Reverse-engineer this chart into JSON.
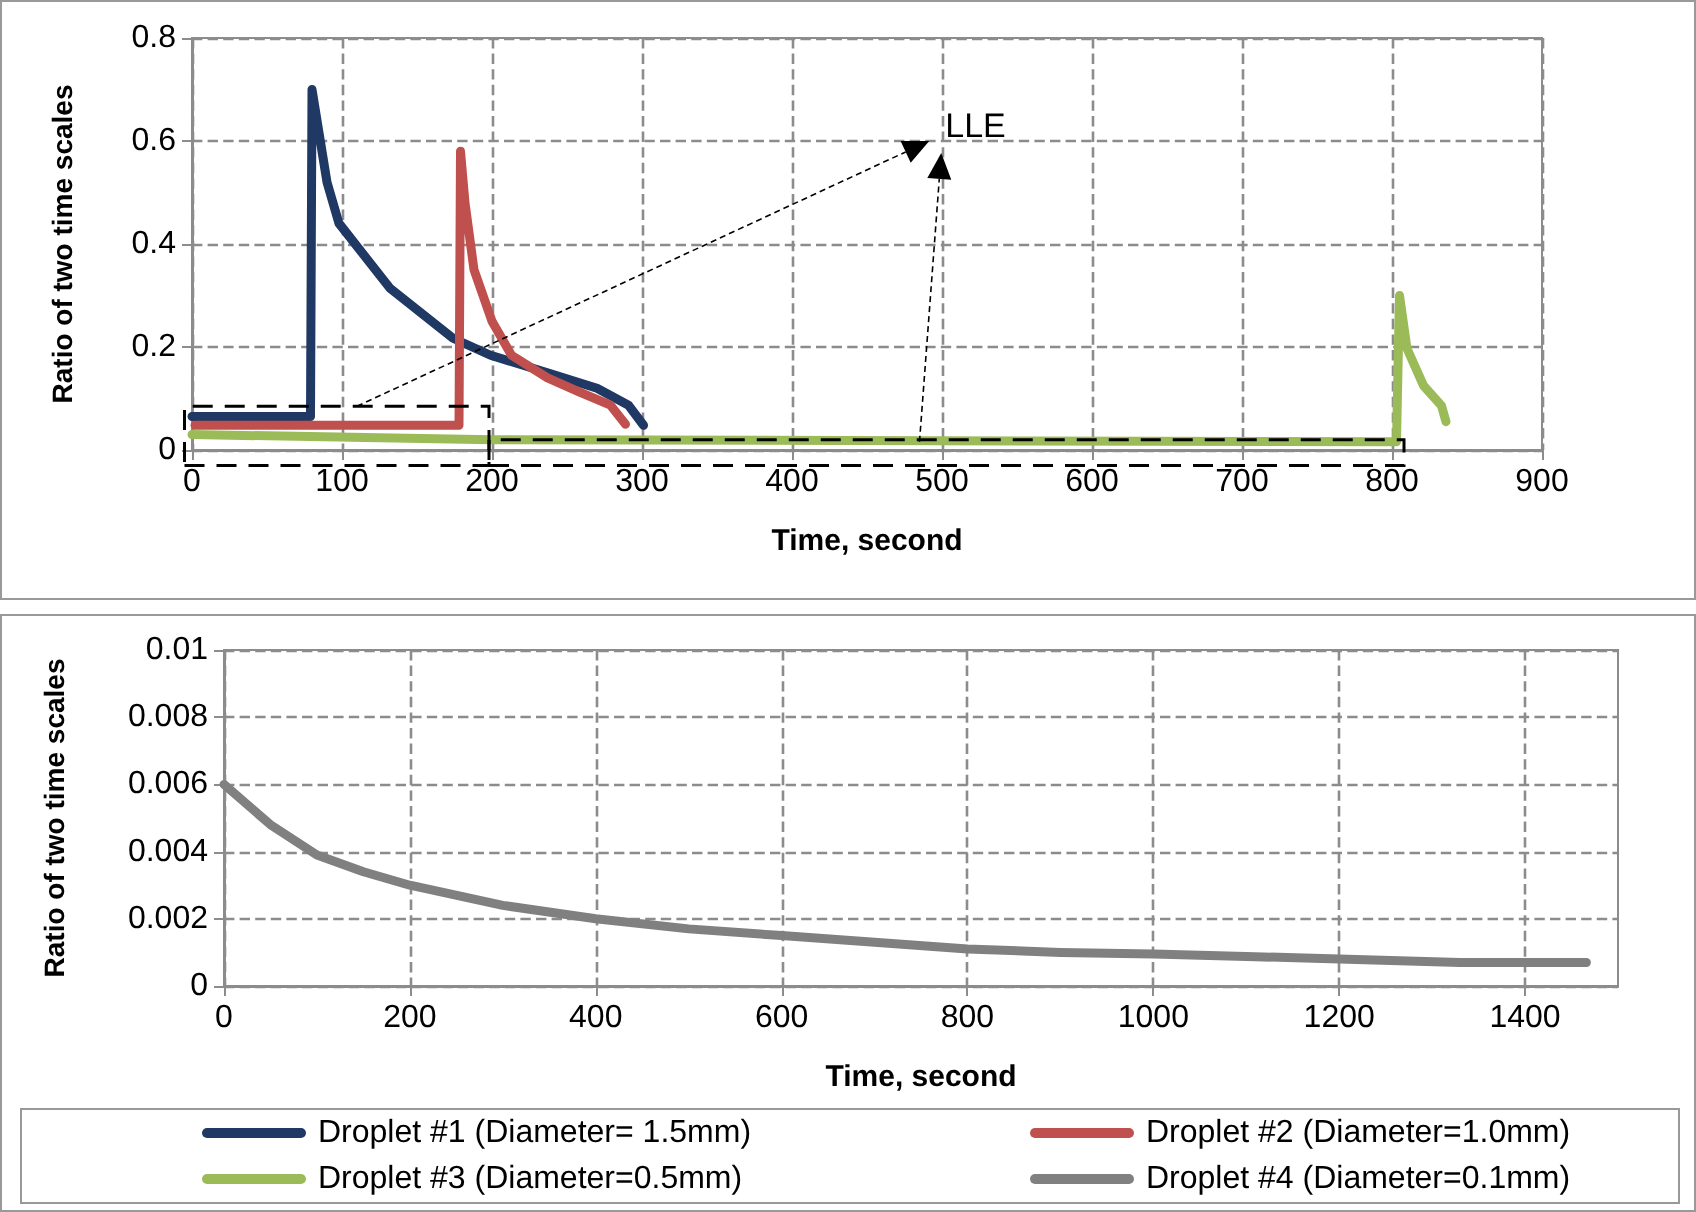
{
  "chart_data": [
    {
      "type": "line",
      "xlabel": "Time, second",
      "ylabel": "Ratio of two time scales",
      "xlim": [
        0,
        900
      ],
      "xticks": [
        0,
        100,
        200,
        300,
        400,
        500,
        600,
        700,
        800,
        900
      ],
      "ylim": [
        0,
        0.8
      ],
      "yticks": [
        0,
        0.2,
        0.4,
        0.6,
        0.8
      ],
      "grid": true,
      "legend": "bottom",
      "marker": "none",
      "annotations": [
        {
          "text": "LLE",
          "x": 485,
          "y": 0.016
        }
      ],
      "series": [
        {
          "name": "Droplet #1 (Diameter= 1.5mm)",
          "color": "#1f3864",
          "x": [
            0,
            79,
            80,
            90,
            98,
            132,
            174,
            199,
            237,
            270,
            291,
            301
          ],
          "values": [
            0.065,
            0.065,
            0.7,
            0.52,
            0.44,
            0.314,
            0.217,
            0.184,
            0.15,
            0.12,
            0.087,
            0.048
          ]
        },
        {
          "name": "Droplet #2 (Diameter=1.0mm)",
          "color": "#c0504d",
          "x": [
            2,
            178,
            179,
            182,
            188,
            200,
            213,
            237,
            258,
            279,
            289
          ],
          "values": [
            0.048,
            0.048,
            0.58,
            0.48,
            0.35,
            0.25,
            0.184,
            0.14,
            0.113,
            0.087,
            0.05
          ]
        },
        {
          "name": "Droplet #3 (Diameter=0.5mm)",
          "color": "#9bbb59",
          "x": [
            0,
            200,
            800,
            803,
            805,
            810,
            821,
            833,
            836
          ],
          "values": [
            0.03,
            0.02,
            0.016,
            0.016,
            0.3,
            0.197,
            0.125,
            0.086,
            0.055
          ]
        }
      ]
    },
    {
      "type": "line",
      "xlabel": "Time, second",
      "ylabel": "Ratio of two time scales",
      "xlim": [
        0,
        1500
      ],
      "xticks": [
        0,
        200,
        400,
        600,
        800,
        1000,
        1200,
        1400
      ],
      "ylim": [
        0,
        0.01
      ],
      "yticks": [
        0,
        0.002,
        0.004,
        0.006,
        0.008,
        0.01
      ],
      "grid": true,
      "legend": "bottom",
      "marker": "none",
      "series": [
        {
          "name": "Droplet #4 (Diameter=0.1mm)",
          "color": "#808080",
          "x": [
            0,
            50,
            100,
            150,
            200,
            300,
            400,
            500,
            600,
            700,
            800,
            900,
            1000,
            1100,
            1200,
            1330,
            1466
          ],
          "values": [
            0.006,
            0.0048,
            0.0039,
            0.0034,
            0.003,
            0.0024,
            0.002,
            0.0017,
            0.0015,
            0.0013,
            0.0011,
            0.001,
            0.00095,
            0.00088,
            0.0008,
            0.0007,
            0.0007
          ]
        }
      ]
    }
  ]
}
